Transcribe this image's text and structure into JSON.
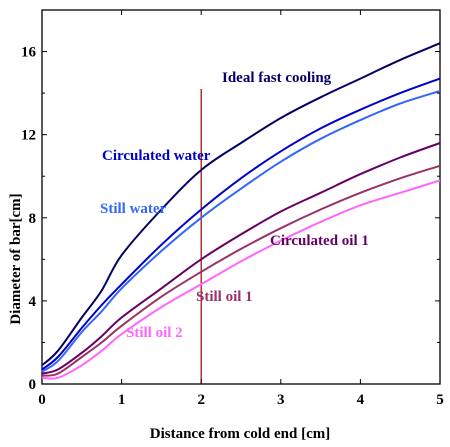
{
  "chart_data": {
    "type": "line",
    "xlabel": "Distance from cold end [cm]",
    "ylabel": "Diameter of bar[cm]",
    "xlim": [
      0,
      5
    ],
    "ylim": [
      0,
      18
    ],
    "x_ticks": [
      "0",
      "1",
      "2",
      "3",
      "4",
      "5"
    ],
    "y_ticks": [
      "0",
      "4",
      "8",
      "12",
      "16"
    ],
    "grid": false,
    "reference_line": {
      "x": 2,
      "color": "#990000"
    },
    "series": [
      {
        "name": "Ideal fast cooling",
        "color": "#000066",
        "points": [
          [
            0,
            0.9
          ],
          [
            0.2,
            1.6
          ],
          [
            0.5,
            3.2
          ],
          [
            0.75,
            4.5
          ],
          [
            1,
            6.2
          ],
          [
            1.5,
            8.4
          ],
          [
            2,
            10.3
          ],
          [
            2.5,
            11.6
          ],
          [
            3,
            12.8
          ],
          [
            3.5,
            13.8
          ],
          [
            4,
            14.7
          ],
          [
            4.5,
            15.6
          ],
          [
            5,
            16.4
          ]
        ]
      },
      {
        "name": "Circulated water",
        "color": "#0000cc",
        "points": [
          [
            0,
            0.7
          ],
          [
            0.2,
            1.3
          ],
          [
            0.5,
            2.7
          ],
          [
            0.75,
            3.8
          ],
          [
            1,
            4.8
          ],
          [
            1.5,
            6.7
          ],
          [
            2,
            8.4
          ],
          [
            2.5,
            9.9
          ],
          [
            3,
            11.2
          ],
          [
            3.5,
            12.3
          ],
          [
            4,
            13.2
          ],
          [
            4.5,
            14.0
          ],
          [
            5,
            14.7
          ]
        ]
      },
      {
        "name": "Still water",
        "color": "#3366ff",
        "points": [
          [
            0,
            0.6
          ],
          [
            0.2,
            1.1
          ],
          [
            0.5,
            2.5
          ],
          [
            0.75,
            3.5
          ],
          [
            1,
            4.6
          ],
          [
            1.5,
            6.4
          ],
          [
            2,
            8.0
          ],
          [
            2.5,
            9.4
          ],
          [
            3,
            10.7
          ],
          [
            3.5,
            11.8
          ],
          [
            4,
            12.7
          ],
          [
            4.5,
            13.5
          ],
          [
            5,
            14.1
          ]
        ]
      },
      {
        "name": "Circulated oil 1",
        "color": "#660066",
        "points": [
          [
            0,
            0.5
          ],
          [
            0.2,
            0.7
          ],
          [
            0.5,
            1.5
          ],
          [
            0.75,
            2.3
          ],
          [
            1,
            3.2
          ],
          [
            1.5,
            4.6
          ],
          [
            2,
            6.0
          ],
          [
            2.5,
            7.2
          ],
          [
            3,
            8.3
          ],
          [
            3.5,
            9.2
          ],
          [
            4,
            10.1
          ],
          [
            4.5,
            10.9
          ],
          [
            5,
            11.6
          ]
        ]
      },
      {
        "name": "Still oil 1",
        "color": "#993366",
        "points": [
          [
            0,
            0.4
          ],
          [
            0.2,
            0.5
          ],
          [
            0.5,
            1.3
          ],
          [
            0.75,
            2.0
          ],
          [
            1,
            2.8
          ],
          [
            1.5,
            4.2
          ],
          [
            2,
            5.4
          ],
          [
            2.5,
            6.5
          ],
          [
            3,
            7.5
          ],
          [
            3.5,
            8.4
          ],
          [
            4,
            9.2
          ],
          [
            4.5,
            9.9
          ],
          [
            5,
            10.5
          ]
        ]
      },
      {
        "name": "Still oil 2",
        "color": "#ff66ff",
        "points": [
          [
            0,
            0.3
          ],
          [
            0.2,
            0.3
          ],
          [
            0.5,
            0.9
          ],
          [
            0.75,
            1.6
          ],
          [
            1,
            2.4
          ],
          [
            1.5,
            3.7
          ],
          [
            2,
            4.8
          ],
          [
            2.5,
            5.9
          ],
          [
            3,
            6.9
          ],
          [
            3.5,
            7.8
          ],
          [
            4,
            8.6
          ],
          [
            4.5,
            9.2
          ],
          [
            5,
            9.8
          ]
        ]
      }
    ]
  }
}
